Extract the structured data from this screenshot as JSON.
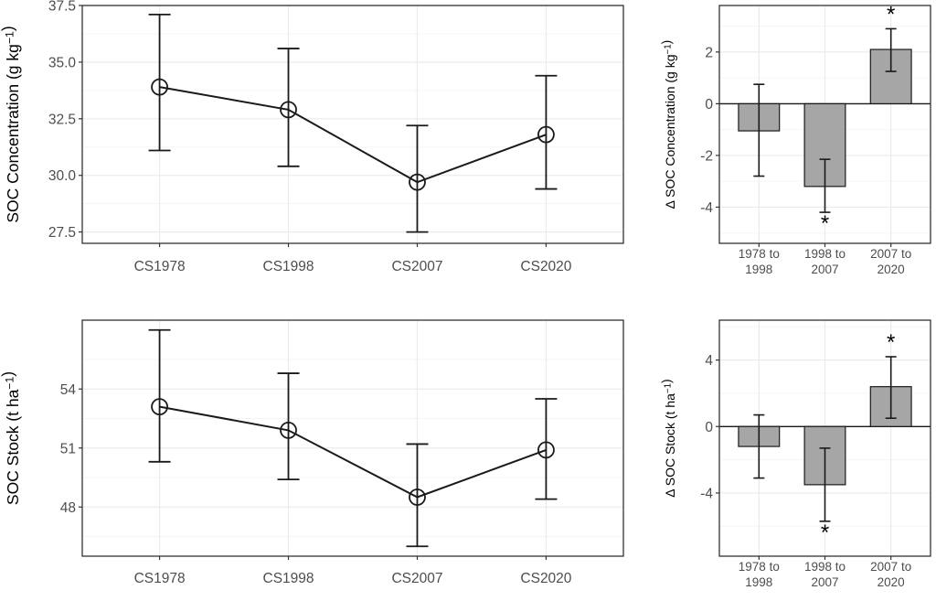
{
  "colors": {
    "panel_border": "#333333",
    "grid_major": "#ebebeb",
    "grid_minor": "#f5f5f5",
    "line": "#1a1a1a",
    "bar_fill": "#a6a6a6",
    "tick_text": "#4d4d4d"
  },
  "chart_data": [
    {
      "id": "soc_concentration",
      "type": "line",
      "ylabel": "SOC Concentration (g kg⁻¹)",
      "categories": [
        "CS1978",
        "CS1998",
        "CS2007",
        "CS2020"
      ],
      "y": [
        33.9,
        32.9,
        29.7,
        31.8
      ],
      "y_lower": [
        31.1,
        30.4,
        27.5,
        29.4
      ],
      "y_upper": [
        37.1,
        35.6,
        32.2,
        34.4
      ],
      "ylim": [
        27.0,
        37.5
      ],
      "yticks": [
        27.5,
        30.0,
        32.5,
        35.0,
        37.5
      ],
      "ytick_labels": [
        "27.5",
        "30.0",
        "32.5",
        "35.0",
        "37.5"
      ],
      "grid": true
    },
    {
      "id": "delta_soc_concentration",
      "type": "bar",
      "ylabel": "Δ SOC Concentration (g kg⁻¹)",
      "categories": [
        "1978 to 1998",
        "1998 to 2007",
        "2007 to 2020"
      ],
      "category_lines": [
        [
          "1978 to",
          "1998"
        ],
        [
          "1998 to",
          "2007"
        ],
        [
          "2007 to",
          "2020"
        ]
      ],
      "values": [
        -1.05,
        -3.2,
        2.1
      ],
      "err_lower": [
        -2.8,
        -4.2,
        1.25
      ],
      "err_upper": [
        0.75,
        -2.15,
        2.9
      ],
      "significance": [
        "",
        "*",
        "*"
      ],
      "ylim": [
        -5.4,
        3.8
      ],
      "yticks": [
        -4,
        -2,
        0,
        2
      ],
      "ytick_labels": [
        "-4",
        "-2",
        "0",
        "2"
      ],
      "grid": true
    },
    {
      "id": "soc_stock",
      "type": "line",
      "ylabel": "SOC Stock (t ha⁻¹)",
      "categories": [
        "CS1978",
        "CS1998",
        "CS2007",
        "CS2020"
      ],
      "y": [
        53.1,
        51.9,
        48.5,
        50.9
      ],
      "y_lower": [
        50.3,
        49.4,
        46.0,
        48.4
      ],
      "y_upper": [
        57.0,
        54.8,
        51.2,
        53.5
      ],
      "ylim": [
        45.5,
        57.5
      ],
      "yticks": [
        48,
        51,
        54
      ],
      "ytick_labels": [
        "48",
        "51",
        "54"
      ],
      "grid": true
    },
    {
      "id": "delta_soc_stock",
      "type": "bar",
      "ylabel": "Δ SOC Stock (t ha⁻¹)",
      "categories": [
        "1978 to 1998",
        "1998 to 2007",
        "2007 to 2020"
      ],
      "category_lines": [
        [
          "1978 to",
          "1998"
        ],
        [
          "1998 to",
          "2007"
        ],
        [
          "2007 to",
          "2020"
        ]
      ],
      "values": [
        -1.2,
        -3.5,
        2.4
      ],
      "err_lower": [
        -3.1,
        -5.7,
        0.5
      ],
      "err_upper": [
        0.7,
        -1.3,
        4.2
      ],
      "significance": [
        "",
        "*",
        "*"
      ],
      "ylim": [
        -7.8,
        6.4
      ],
      "yticks": [
        -4,
        0,
        4
      ],
      "ytick_labels": [
        "-4",
        "0",
        "4"
      ],
      "grid": true
    }
  ]
}
